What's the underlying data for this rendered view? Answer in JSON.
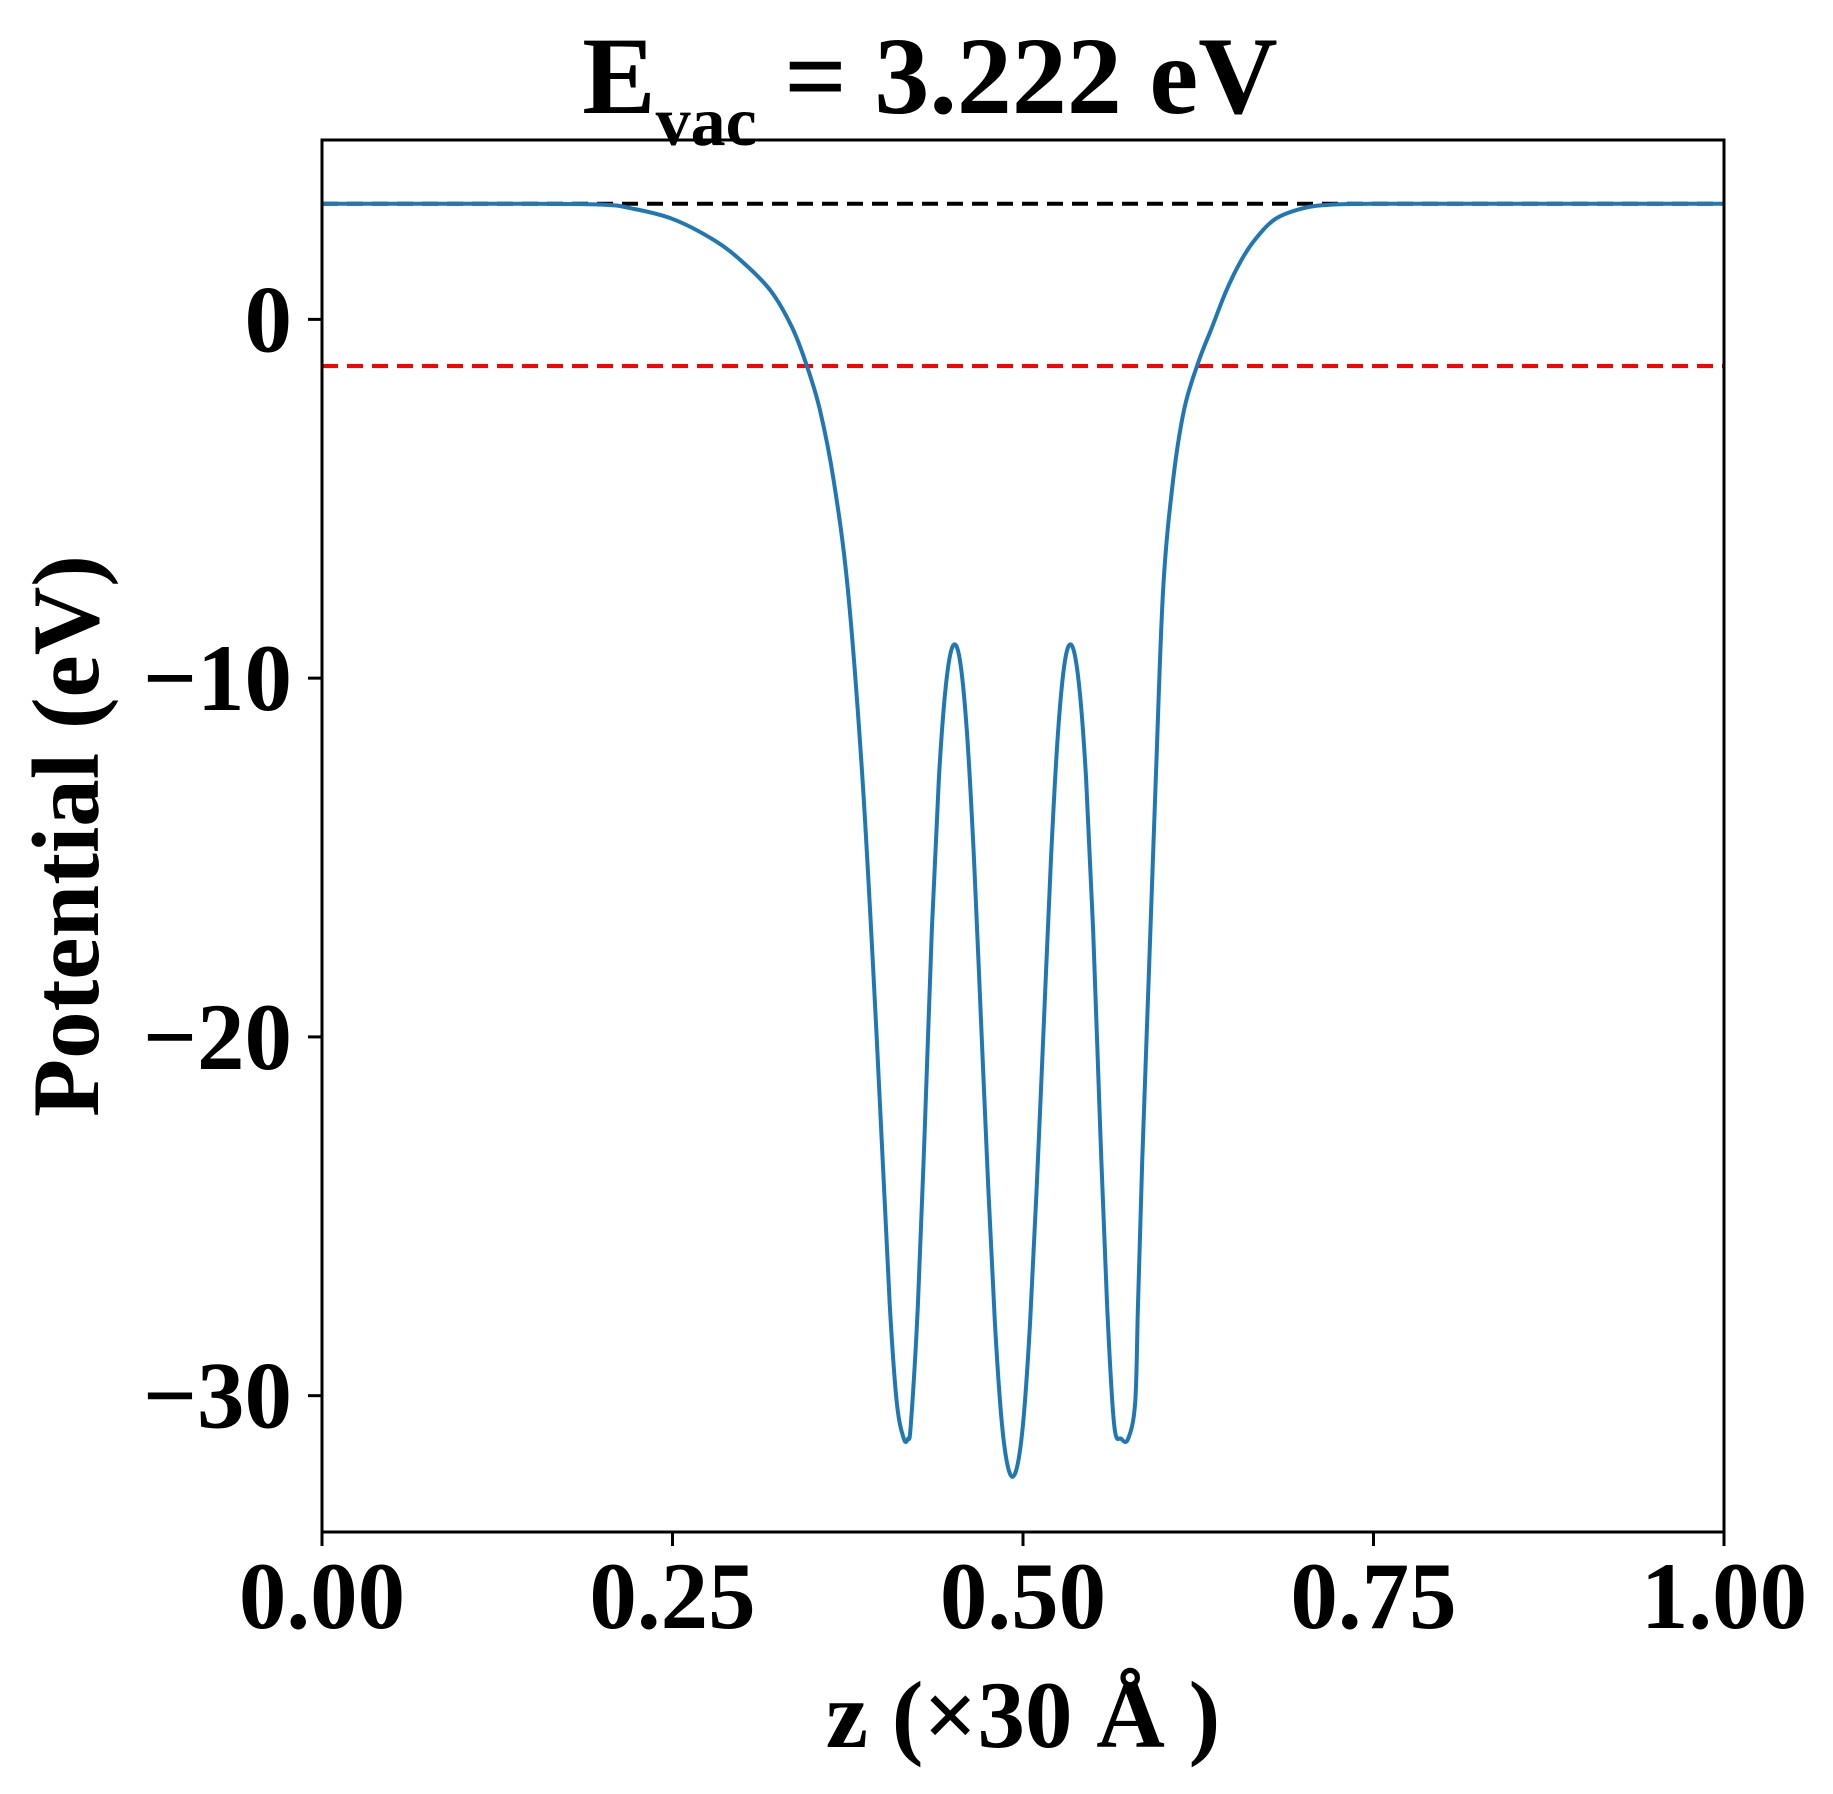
{
  "chart_data": {
    "type": "line",
    "title": {
      "main": "E",
      "subscript": "vac",
      "suffix": " = 3.222 eV"
    },
    "xlabel": "z (×30 Å )",
    "ylabel": "Potential (eV)",
    "xlim": [
      0.0,
      1.0
    ],
    "ylim": [
      -33.8,
      5.0
    ],
    "x_ticks": [
      0.0,
      0.25,
      0.5,
      0.75,
      1.0
    ],
    "x_tick_labels": [
      "0.00",
      "0.25",
      "0.50",
      "0.75",
      "1.00"
    ],
    "y_ticks": [
      0,
      -10,
      -20,
      -30
    ],
    "y_tick_labels": [
      "0",
      "−10",
      "−20",
      "−30"
    ],
    "grid": false,
    "colors": {
      "series": "#1f77b4",
      "vacuum_line": "#000000",
      "fermi_line": "#ff0000"
    },
    "reference_lines": [
      {
        "y": 3.222,
        "style": "dashed",
        "color": "#000000"
      },
      {
        "y": -1.3,
        "style": "dashed",
        "color": "#ff0000"
      }
    ],
    "series": [
      {
        "x": [
          0.0,
          0.05,
          0.1,
          0.15,
          0.2,
          0.22,
          0.25,
          0.28,
          0.3,
          0.32,
          0.335,
          0.345,
          0.355,
          0.365,
          0.375,
          0.385,
          0.393,
          0.4,
          0.405,
          0.41,
          0.415,
          0.418,
          0.42,
          0.425,
          0.43,
          0.435,
          0.44,
          0.445,
          0.45,
          0.455,
          0.46,
          0.465,
          0.47,
          0.475,
          0.48,
          0.485,
          0.49,
          0.495,
          0.5,
          0.505,
          0.51,
          0.515,
          0.52,
          0.525,
          0.53,
          0.535,
          0.54,
          0.545,
          0.55,
          0.555,
          0.56,
          0.565,
          0.57,
          0.575,
          0.58,
          0.582,
          0.585,
          0.59,
          0.595,
          0.6,
          0.607,
          0.615,
          0.625,
          0.635,
          0.645,
          0.655,
          0.665,
          0.68,
          0.7,
          0.72,
          0.75,
          0.78,
          0.8,
          0.85,
          0.9,
          0.95,
          1.0
        ],
        "y": [
          3.222,
          3.222,
          3.222,
          3.222,
          3.2,
          3.1,
          2.8,
          2.2,
          1.6,
          0.8,
          -0.2,
          -1.2,
          -2.5,
          -4.5,
          -7.5,
          -12.5,
          -18.0,
          -23.5,
          -27.5,
          -30.2,
          -31.2,
          -31.2,
          -30.8,
          -27.5,
          -22.5,
          -17.0,
          -12.8,
          -10.2,
          -9.1,
          -9.5,
          -11.5,
          -15.0,
          -19.5,
          -24.0,
          -28.0,
          -30.8,
          -32.1,
          -32.1,
          -30.8,
          -28.0,
          -24.0,
          -19.5,
          -15.0,
          -11.5,
          -9.5,
          -9.1,
          -10.2,
          -12.8,
          -17.0,
          -22.5,
          -27.5,
          -30.8,
          -31.2,
          -31.2,
          -30.2,
          -27.5,
          -23.5,
          -18.0,
          -12.5,
          -7.5,
          -4.5,
          -2.5,
          -1.2,
          -0.2,
          0.8,
          1.6,
          2.2,
          2.8,
          3.1,
          3.2,
          3.222,
          3.222,
          3.222,
          3.222,
          3.222,
          3.222,
          3.222
        ]
      }
    ]
  }
}
